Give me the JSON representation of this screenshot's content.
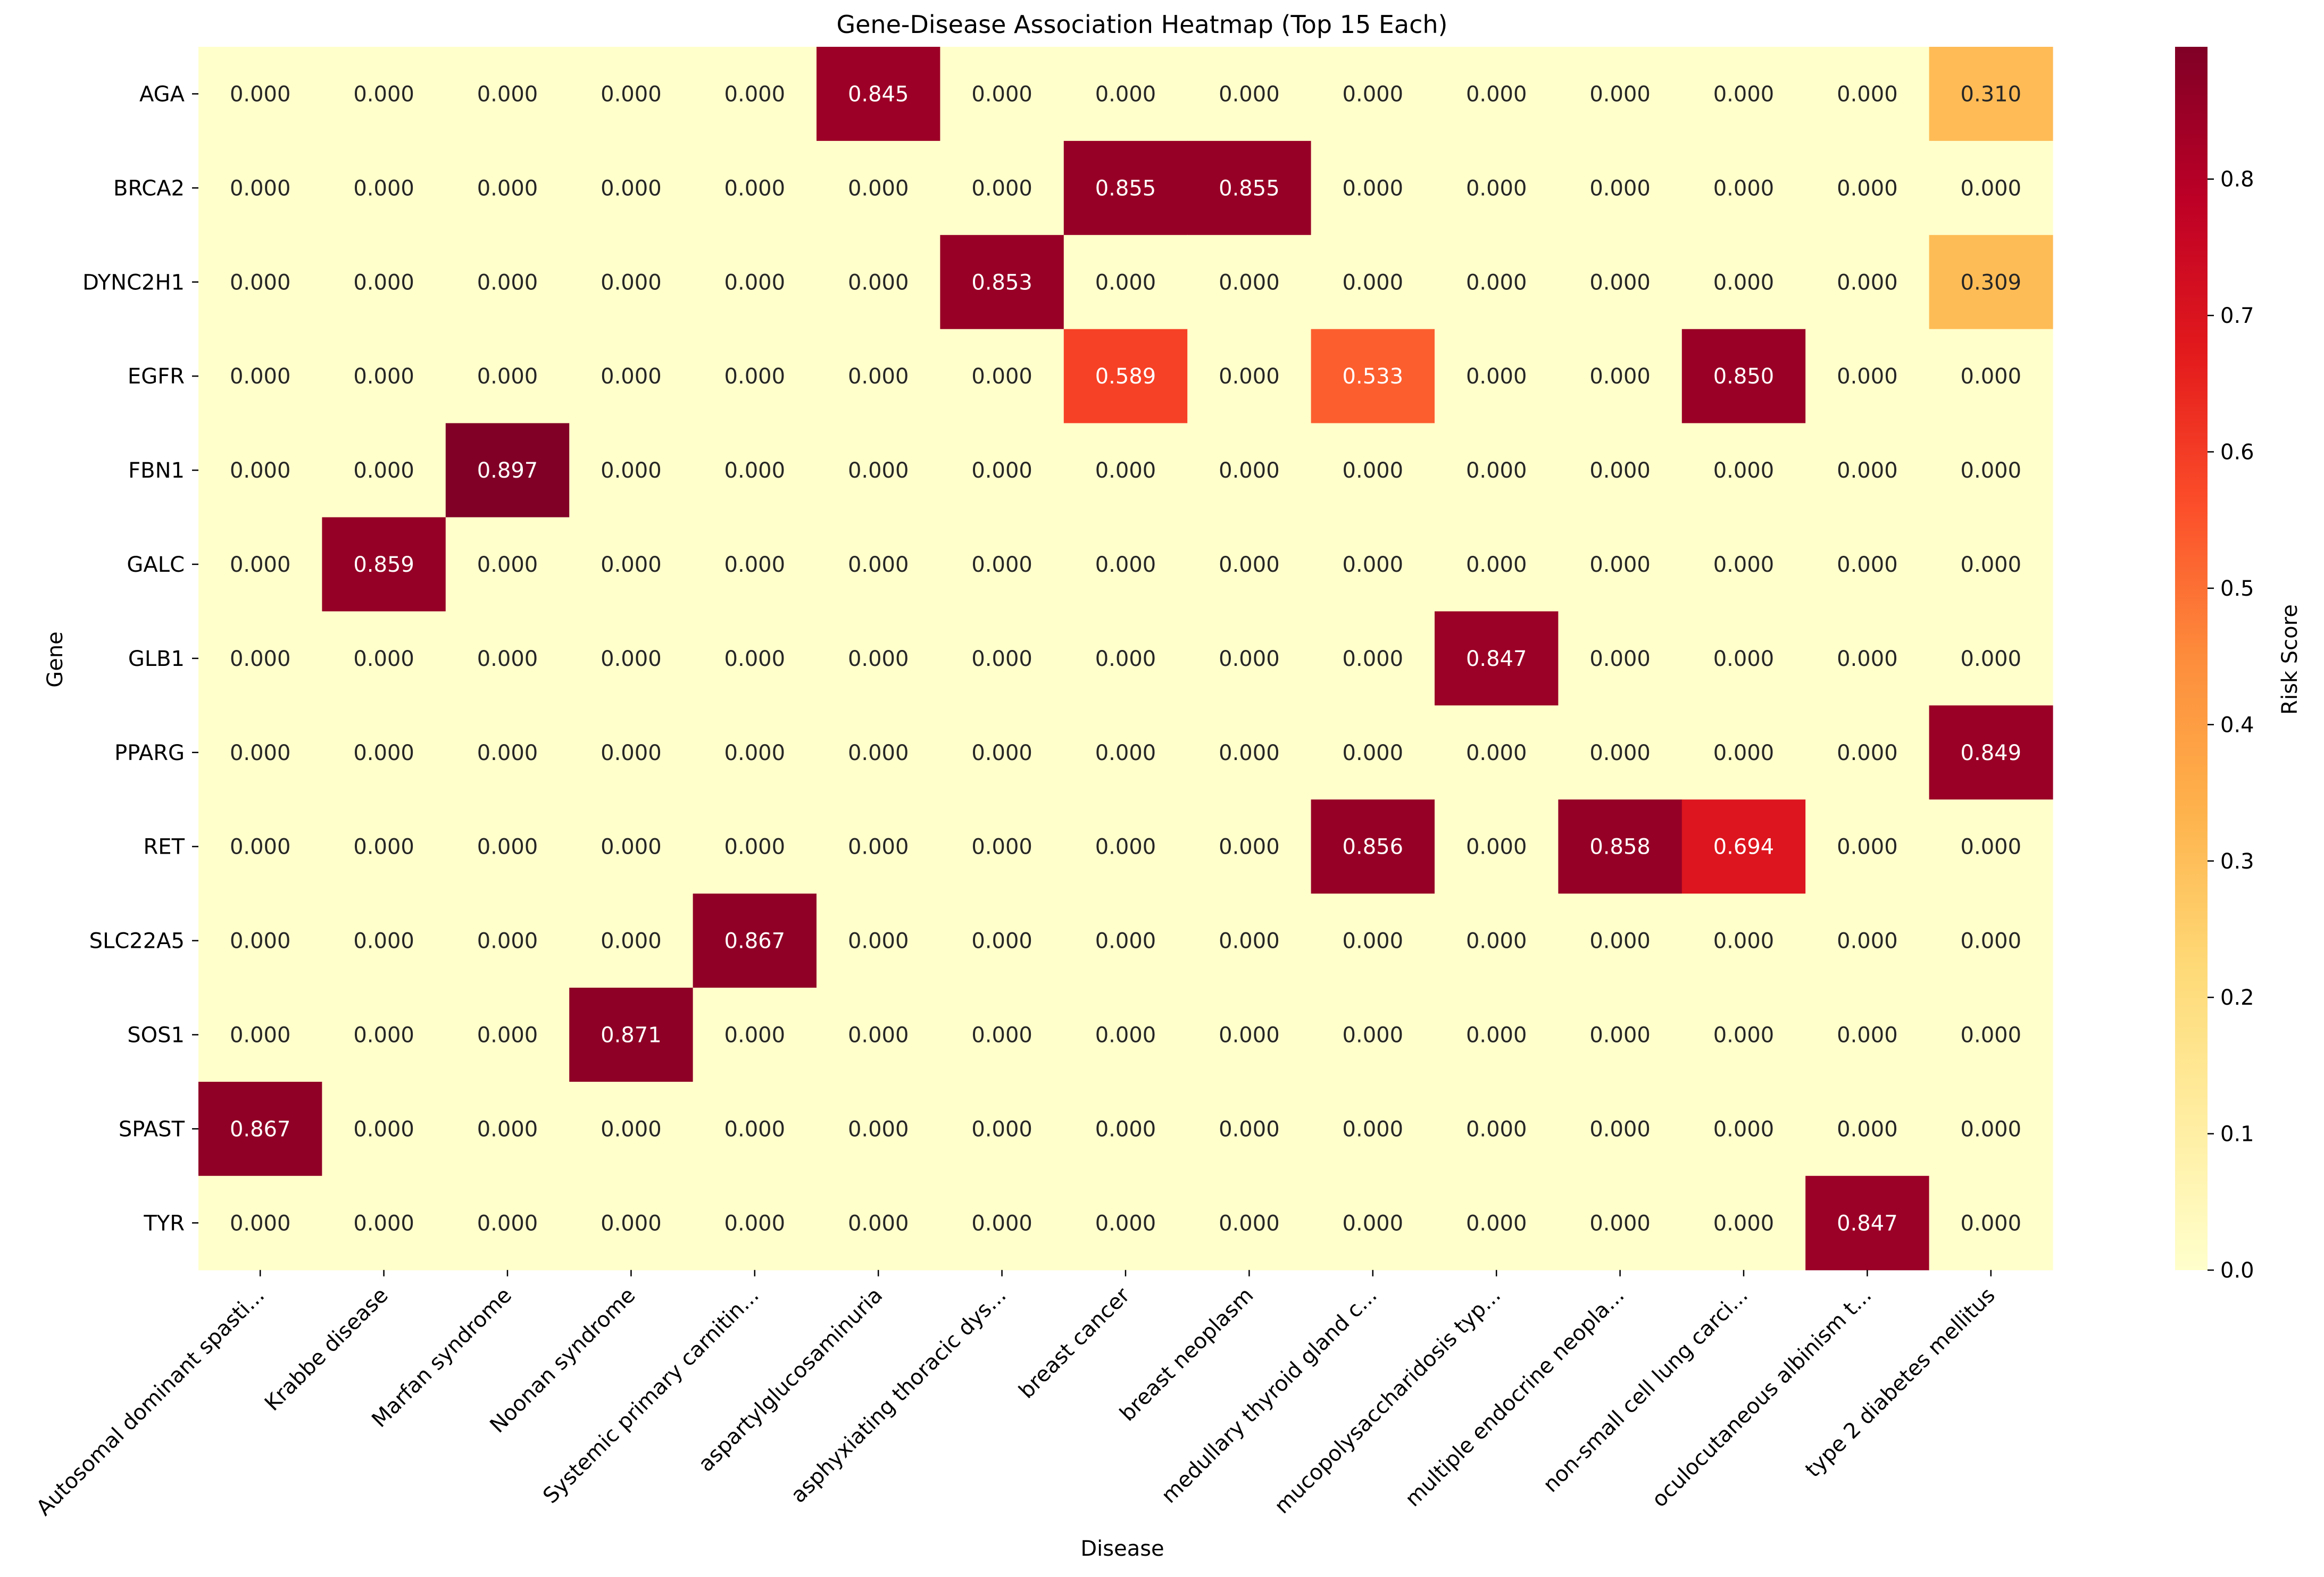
{
  "chart_data": {
    "type": "heatmap",
    "title": "Gene-Disease Association Heatmap (Top 15 Each)",
    "xlabel": "Disease",
    "ylabel": "Gene",
    "colorbar_label": "Risk Score",
    "colorbar_ticks": [
      "0.0",
      "0.1",
      "0.2",
      "0.3",
      "0.4",
      "0.5",
      "0.6",
      "0.7",
      "0.8"
    ],
    "colorbar_range": [
      0,
      0.897
    ],
    "colormap": "YlOrRd",
    "colors": [
      "#ffffcc",
      "#ffeda0",
      "#fed976",
      "#feb24c",
      "#fd8d3c",
      "#fc4e2a",
      "#e31a1c",
      "#bd0026",
      "#800026"
    ],
    "columns": [
      "Autosomal dominant spasti...",
      "Krabbe disease",
      "Marfan syndrome",
      "Noonan syndrome",
      "Systemic primary carnitin...",
      "aspartylglucosaminuria",
      "asphyxiating thoracic dys...",
      "breast cancer",
      "breast neoplasm",
      "medullary thyroid gland c...",
      "mucopolysaccharidosis typ...",
      "multiple endocrine neopla...",
      "non-small cell lung carci...",
      "oculocutaneous albinism t...",
      "type 2 diabetes mellitus"
    ],
    "rows": [
      "AGA",
      "BRCA2",
      "DYNC2H1",
      "EGFR",
      "FBN1",
      "GALC",
      "GLB1",
      "PPARG",
      "RET",
      "SLC22A5",
      "SOS1",
      "SPAST",
      "TYR"
    ],
    "values": [
      [
        0,
        0,
        0,
        0,
        0,
        0.845,
        0,
        0,
        0,
        0,
        0,
        0,
        0,
        0,
        0.31
      ],
      [
        0,
        0,
        0,
        0,
        0,
        0,
        0,
        0.855,
        0.855,
        0,
        0,
        0,
        0,
        0,
        0
      ],
      [
        0,
        0,
        0,
        0,
        0,
        0,
        0.853,
        0,
        0,
        0,
        0,
        0,
        0,
        0,
        0.309
      ],
      [
        0,
        0,
        0,
        0,
        0,
        0,
        0,
        0.589,
        0,
        0.533,
        0,
        0,
        0.85,
        0,
        0
      ],
      [
        0,
        0,
        0.897,
        0,
        0,
        0,
        0,
        0,
        0,
        0,
        0,
        0,
        0,
        0,
        0
      ],
      [
        0,
        0.859,
        0,
        0,
        0,
        0,
        0,
        0,
        0,
        0,
        0,
        0,
        0,
        0,
        0
      ],
      [
        0,
        0,
        0,
        0,
        0,
        0,
        0,
        0,
        0,
        0,
        0.847,
        0,
        0,
        0,
        0
      ],
      [
        0,
        0,
        0,
        0,
        0,
        0,
        0,
        0,
        0,
        0,
        0,
        0,
        0,
        0,
        0.849
      ],
      [
        0,
        0,
        0,
        0,
        0,
        0,
        0,
        0,
        0,
        0.856,
        0,
        0.858,
        0.694,
        0,
        0
      ],
      [
        0,
        0,
        0,
        0,
        0.867,
        0,
        0,
        0,
        0,
        0,
        0,
        0,
        0,
        0,
        0
      ],
      [
        0,
        0,
        0,
        0.871,
        0,
        0,
        0,
        0,
        0,
        0,
        0,
        0,
        0,
        0,
        0
      ],
      [
        0.867,
        0,
        0,
        0,
        0,
        0,
        0,
        0,
        0,
        0,
        0,
        0,
        0,
        0,
        0
      ],
      [
        0,
        0,
        0,
        0,
        0,
        0,
        0,
        0,
        0,
        0,
        0,
        0,
        0,
        0.847,
        0
      ]
    ],
    "value_format": "3 decimals"
  }
}
